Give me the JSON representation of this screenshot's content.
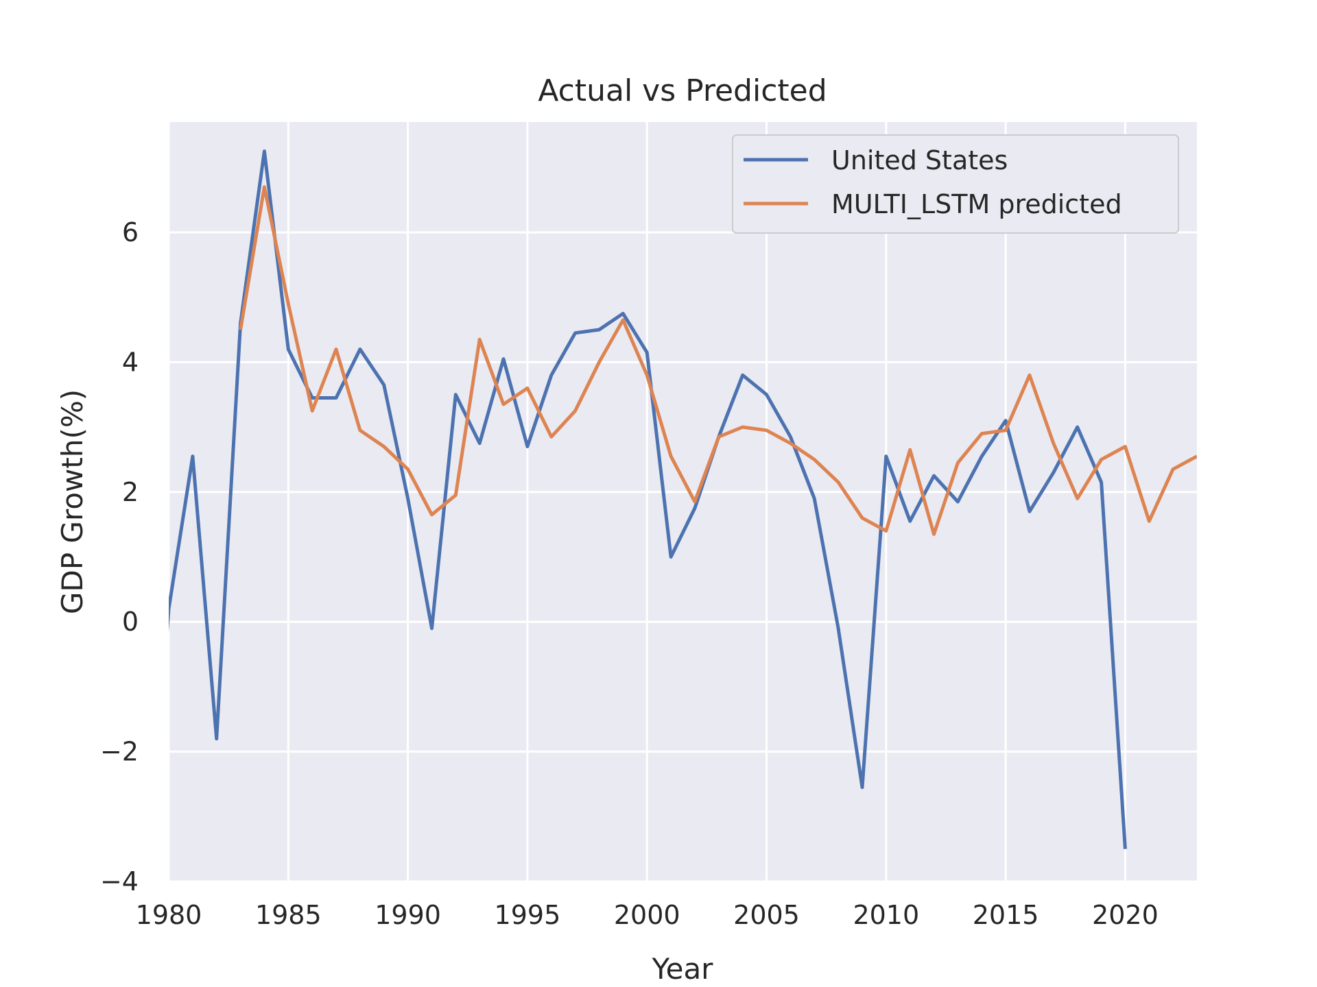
{
  "chart_data": {
    "type": "line",
    "title": "Actual vs Predicted",
    "xlabel": "Year",
    "ylabel": "GDP Growth(%)",
    "xlim": [
      1980,
      2023
    ],
    "ylim": [
      -4,
      7.7
    ],
    "xticks": [
      1980,
      1985,
      1990,
      1995,
      2000,
      2005,
      2010,
      2015,
      2020
    ],
    "yticks": [
      -4,
      -2,
      0,
      2,
      4,
      6
    ],
    "ytick_labels": [
      "−4",
      "−2",
      "0",
      "2",
      "4",
      "6"
    ],
    "grid": true,
    "legend_position": "top-right",
    "series": [
      {
        "name": "United States",
        "color": "#4c72b0",
        "x": [
          1979.9,
          1980,
          1981,
          1982,
          1983,
          1984,
          1985,
          1986,
          1987,
          1988,
          1989,
          1990,
          1991,
          1992,
          1993,
          1994,
          1995,
          1996,
          1997,
          1998,
          1999,
          2000,
          2001,
          2002,
          2003,
          2004,
          2005,
          2006,
          2007,
          2008,
          2009,
          2010,
          2011,
          2012,
          2013,
          2014,
          2015,
          2016,
          2017,
          2018,
          2019,
          2020
        ],
        "values": [
          -0.3,
          0.2,
          2.55,
          -1.8,
          4.6,
          7.25,
          4.2,
          3.45,
          3.45,
          4.2,
          3.65,
          1.9,
          -0.1,
          3.5,
          2.75,
          4.05,
          2.7,
          3.8,
          4.45,
          4.5,
          4.75,
          4.15,
          1.0,
          1.75,
          2.85,
          3.8,
          3.5,
          2.85,
          1.9,
          -0.1,
          -2.55,
          2.55,
          1.55,
          2.25,
          1.85,
          2.55,
          3.1,
          1.7,
          2.3,
          3.0,
          2.15,
          -3.5
        ]
      },
      {
        "name": "MULTI_LSTM predicted",
        "color": "#dd8452",
        "x": [
          1983,
          1984,
          1985,
          1986,
          1987,
          1988,
          1989,
          1990,
          1991,
          1992,
          1993,
          1994,
          1995,
          1996,
          1997,
          1998,
          1999,
          2000,
          2001,
          2002,
          2003,
          2004,
          2005,
          2006,
          2007,
          2008,
          2009,
          2010,
          2011,
          2012,
          2013,
          2014,
          2015,
          2016,
          2017,
          2018,
          2019,
          2020,
          2021,
          2022,
          2023
        ],
        "values": [
          4.5,
          6.7,
          4.9,
          3.25,
          4.2,
          2.95,
          2.7,
          2.35,
          1.65,
          1.95,
          4.35,
          3.35,
          3.6,
          2.85,
          3.25,
          4.0,
          4.65,
          3.8,
          2.55,
          1.85,
          2.85,
          3.0,
          2.95,
          2.75,
          2.5,
          2.15,
          1.6,
          1.4,
          2.65,
          1.35,
          2.45,
          2.9,
          2.95,
          3.8,
          2.75,
          1.9,
          2.5,
          2.7,
          1.55,
          2.35,
          2.55
        ]
      }
    ]
  }
}
